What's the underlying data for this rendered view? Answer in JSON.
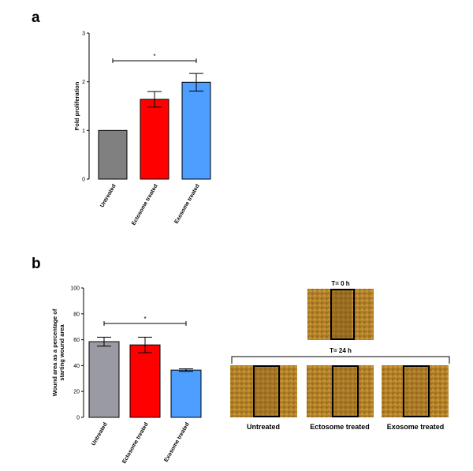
{
  "chart_data": [
    {
      "type": "bar",
      "panel": "a",
      "categories": [
        "Untreated",
        "Ectosome treated",
        "Exosome treated"
      ],
      "values": [
        1.0,
        1.64,
        1.99
      ],
      "errors": [
        0,
        0.16,
        0.18
      ],
      "colors": [
        "#808080",
        "#ff0000",
        "#4d9eff"
      ],
      "ylabel": "Fold proliferation",
      "ylim": [
        0,
        3
      ],
      "yticks": [
        "0",
        "1",
        "2",
        "3"
      ],
      "significance": {
        "from": 0,
        "to": 2,
        "label": "*"
      }
    },
    {
      "type": "bar",
      "panel": "b",
      "categories": [
        "Untreated",
        "Ectosome treated",
        "Exosome treated"
      ],
      "values": [
        58.5,
        56.0,
        36.5
      ],
      "errors": [
        3.5,
        6.0,
        1.0
      ],
      "colors": [
        "#9a9aa2",
        "#ff0000",
        "#4d9eff"
      ],
      "ylabel": "Wound area as a percentage of starting wound area",
      "ylabel_lines": [
        "Wound area as a percentage of",
        "starting wound area"
      ],
      "ylim": [
        0,
        100
      ],
      "yticks": [
        "0",
        "20",
        "40",
        "60",
        "80",
        "100"
      ],
      "significance": {
        "from": 0,
        "to": 2,
        "label": "*"
      }
    }
  ],
  "micrographs": {
    "t0_label": "T= 0 h",
    "t24_label": "T= 24 h",
    "labels": [
      "Untreated",
      "Ectosome treated",
      "Exosome treated"
    ]
  }
}
